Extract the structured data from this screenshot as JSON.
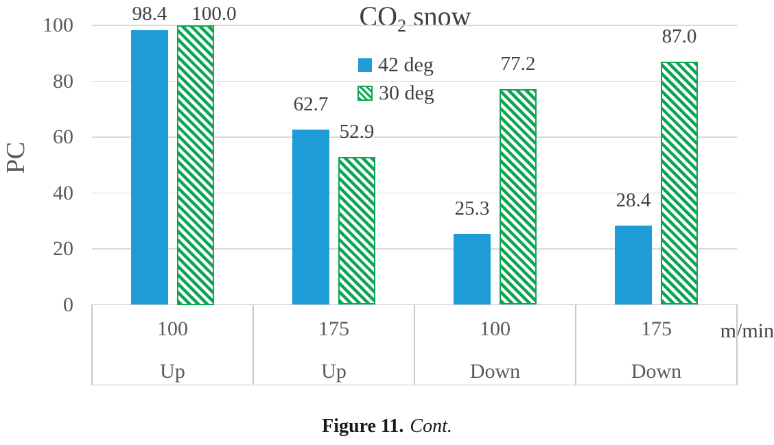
{
  "figure": {
    "caption_label": "Figure 11.",
    "caption_text": "Cont."
  },
  "chart_data": {
    "type": "bar",
    "title": {
      "prefix": "CO",
      "subscript": "2",
      "suffix": " snow"
    },
    "ylabel": "PC",
    "xlabel": "",
    "x_unit_label": "m/min",
    "ylim": [
      0,
      100
    ],
    "yticks": [
      0,
      20,
      40,
      60,
      80,
      100
    ],
    "grid": true,
    "legend_position": "top-center",
    "categories": [
      {
        "speed": "100",
        "direction": "Up"
      },
      {
        "speed": "175",
        "direction": "Up"
      },
      {
        "speed": "100",
        "direction": "Down"
      },
      {
        "speed": "175",
        "direction": "Down"
      }
    ],
    "series": [
      {
        "name": "42 deg",
        "pattern": "solid",
        "color": "#1e9cd7",
        "values": [
          98.4,
          62.7,
          25.3,
          28.4
        ],
        "value_labels": [
          "98.4",
          "62.7",
          "25.3",
          "28.4"
        ]
      },
      {
        "name": "30 deg",
        "pattern": "hatched",
        "color": "#0ca653",
        "values": [
          100.0,
          52.9,
          77.2,
          87.0
        ],
        "value_labels": [
          "100.0",
          "52.9",
          "77.2",
          "87.0"
        ]
      }
    ],
    "colors": {
      "gridline": "#d9d9d9",
      "axis_border": "#c9c9c9",
      "text_dark": "#404040",
      "text_gray": "#595959",
      "caption_text": "#1a1a1a",
      "background": "#ffffff"
    }
  }
}
